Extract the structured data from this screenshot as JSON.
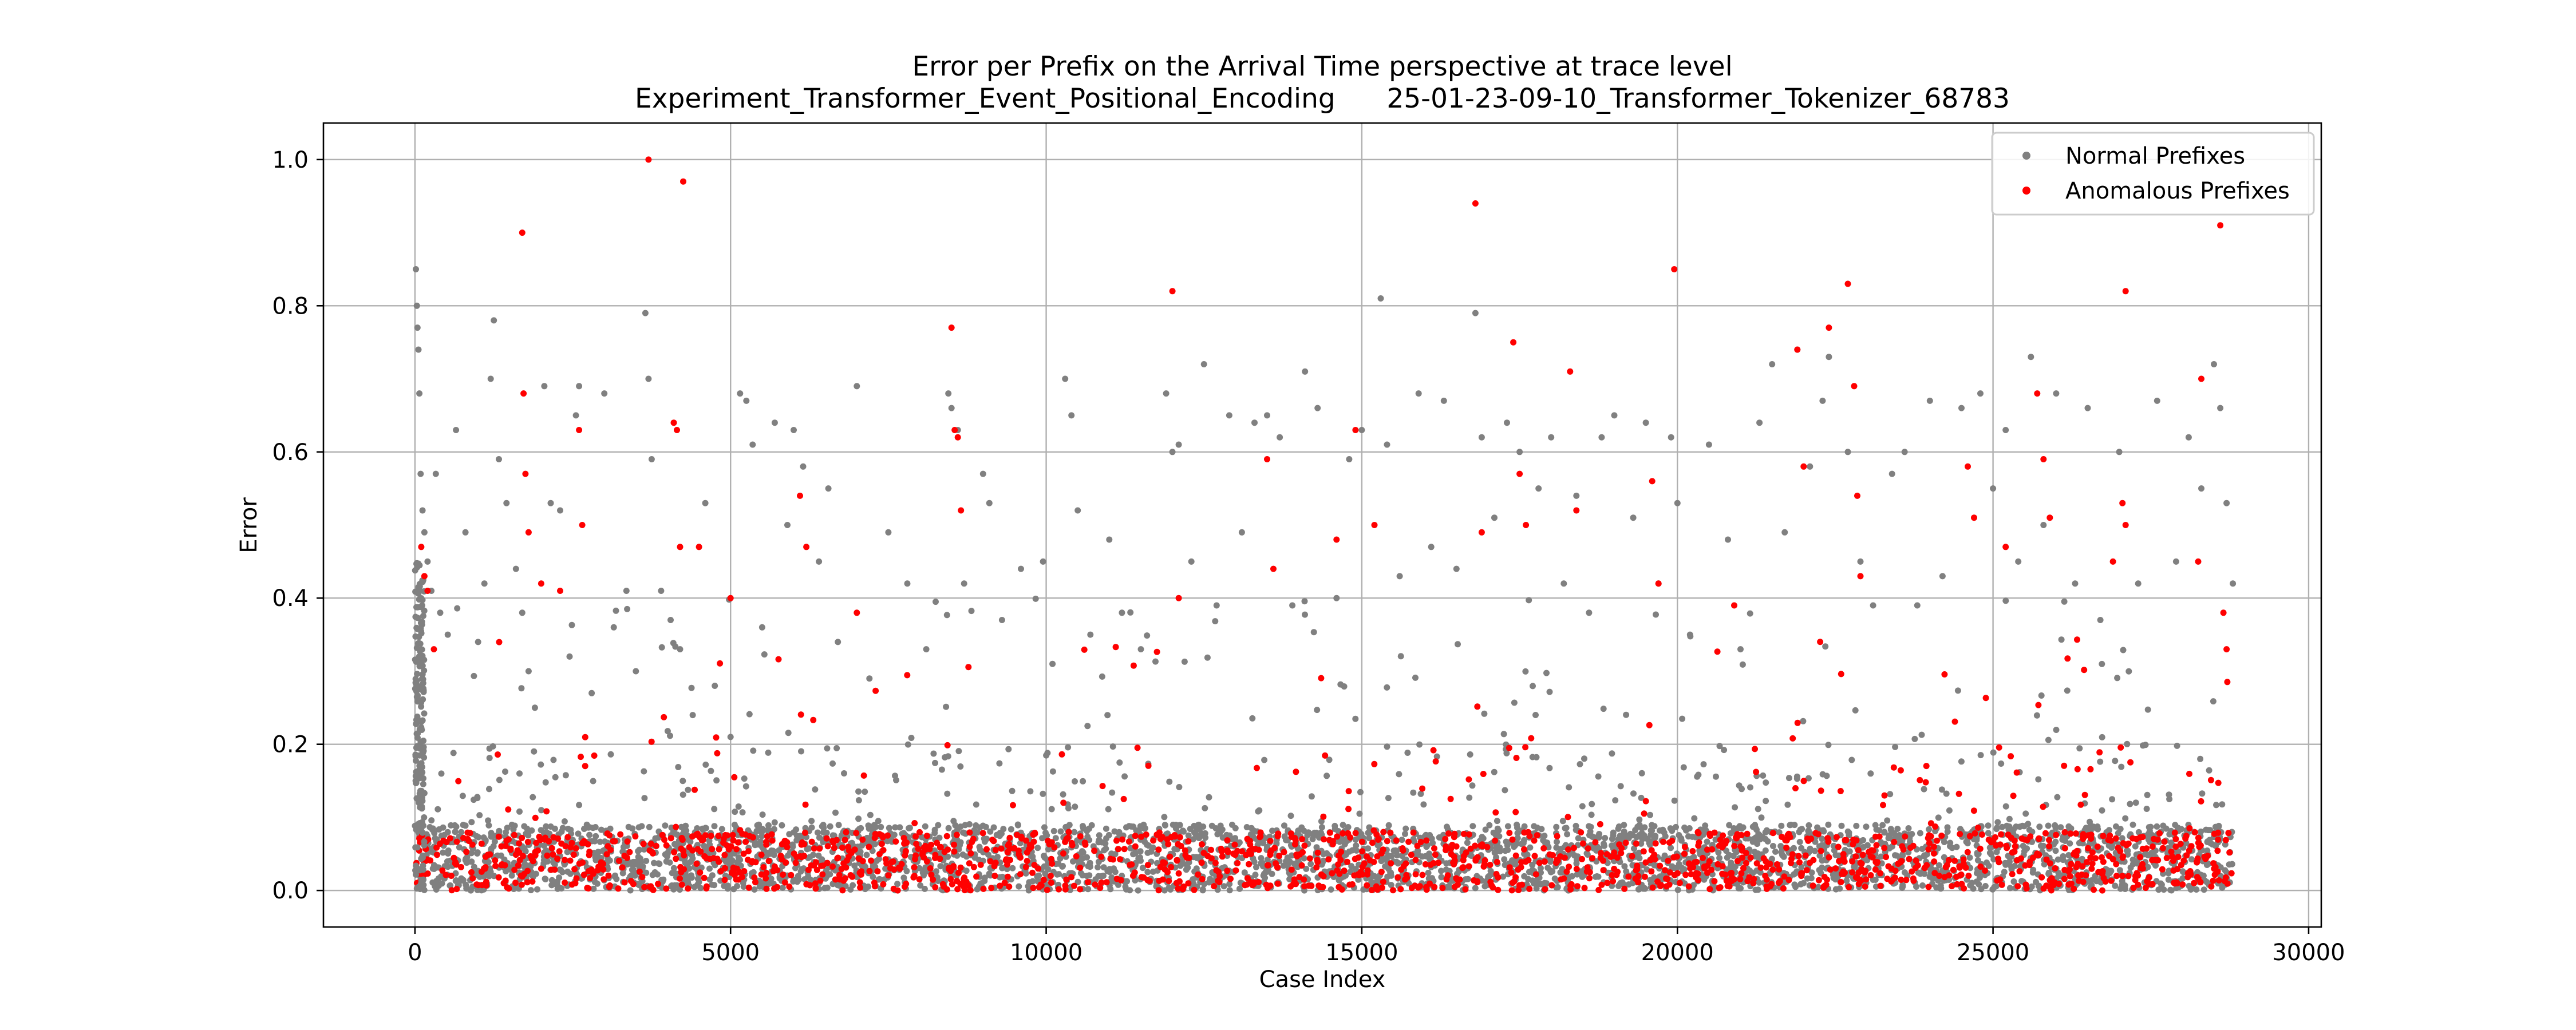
{
  "chart_data": {
    "type": "scatter",
    "title": "Error per Prefix on the Arrival Time perspective at trace level",
    "subtitle": "Experiment_Transformer_Event_Positional_Encoding      25-01-23-09-10_Transformer_Tokenizer_68783",
    "xlabel": "Case Index",
    "ylabel": "Error",
    "xlim": [
      -1450,
      30200
    ],
    "ylim": [
      -0.05,
      1.05
    ],
    "x_ticks": [
      0,
      5000,
      10000,
      15000,
      20000,
      25000,
      30000
    ],
    "y_ticks": [
      0.0,
      0.2,
      0.4,
      0.6,
      0.8,
      1.0
    ],
    "x_tick_labels": [
      "0",
      "5000",
      "10000",
      "15000",
      "20000",
      "25000",
      "30000"
    ],
    "y_tick_labels": [
      "0.0",
      "0.2",
      "0.4",
      "0.6",
      "0.8",
      "1.0"
    ],
    "grid": true,
    "legend_position": "top-right",
    "series": [
      {
        "name": "Normal Prefixes",
        "color": "#808080",
        "points": [
          [
            15,
            0.85
          ],
          [
            30,
            0.8
          ],
          [
            40,
            0.77
          ],
          [
            55,
            0.74
          ],
          [
            70,
            0.68
          ],
          [
            90,
            0.57
          ],
          [
            120,
            0.52
          ],
          [
            150,
            0.49
          ],
          [
            200,
            0.45
          ],
          [
            260,
            0.41
          ],
          [
            330,
            0.57
          ],
          [
            400,
            0.38
          ],
          [
            520,
            0.35
          ],
          [
            650,
            0.63
          ],
          [
            800,
            0.49
          ],
          [
            1000,
            0.34
          ],
          [
            1100,
            0.42
          ],
          [
            1200,
            0.7
          ],
          [
            1250,
            0.78
          ],
          [
            1330,
            0.59
          ],
          [
            1450,
            0.53
          ],
          [
            1600,
            0.44
          ],
          [
            1700,
            0.38
          ],
          [
            1800,
            0.3
          ],
          [
            1900,
            0.25
          ],
          [
            2050,
            0.69
          ],
          [
            2150,
            0.53
          ],
          [
            2300,
            0.52
          ],
          [
            2450,
            0.32
          ],
          [
            2550,
            0.65
          ],
          [
            2600,
            0.69
          ],
          [
            2800,
            0.27
          ],
          [
            3000,
            0.68
          ],
          [
            3150,
            0.36
          ],
          [
            3350,
            0.41
          ],
          [
            3500,
            0.3
          ],
          [
            3650,
            0.79
          ],
          [
            3700,
            0.7
          ],
          [
            3750,
            0.59
          ],
          [
            3900,
            0.41
          ],
          [
            4050,
            0.37
          ],
          [
            4200,
            0.33
          ],
          [
            4400,
            0.24
          ],
          [
            4600,
            0.53
          ],
          [
            4750,
            0.28
          ],
          [
            5000,
            0.21
          ],
          [
            5150,
            0.68
          ],
          [
            5250,
            0.67
          ],
          [
            5350,
            0.61
          ],
          [
            5500,
            0.36
          ],
          [
            5700,
            0.64
          ],
          [
            5900,
            0.5
          ],
          [
            6000,
            0.63
          ],
          [
            6150,
            0.58
          ],
          [
            6400,
            0.45
          ],
          [
            6550,
            0.55
          ],
          [
            6700,
            0.34
          ],
          [
            7000,
            0.69
          ],
          [
            7200,
            0.29
          ],
          [
            7500,
            0.49
          ],
          [
            7800,
            0.42
          ],
          [
            8100,
            0.33
          ],
          [
            8450,
            0.68
          ],
          [
            8500,
            0.66
          ],
          [
            8600,
            0.63
          ],
          [
            8700,
            0.42
          ],
          [
            9000,
            0.57
          ],
          [
            9100,
            0.53
          ],
          [
            9300,
            0.37
          ],
          [
            9600,
            0.44
          ],
          [
            9950,
            0.45
          ],
          [
            10100,
            0.31
          ],
          [
            10300,
            0.7
          ],
          [
            10400,
            0.65
          ],
          [
            10500,
            0.52
          ],
          [
            10700,
            0.35
          ],
          [
            11000,
            0.48
          ],
          [
            11200,
            0.38
          ],
          [
            11500,
            0.33
          ],
          [
            11900,
            0.68
          ],
          [
            12000,
            0.6
          ],
          [
            12100,
            0.61
          ],
          [
            12300,
            0.45
          ],
          [
            12500,
            0.72
          ],
          [
            12700,
            0.39
          ],
          [
            12900,
            0.65
          ],
          [
            13100,
            0.49
          ],
          [
            13300,
            0.64
          ],
          [
            13500,
            0.65
          ],
          [
            13700,
            0.62
          ],
          [
            13900,
            0.39
          ],
          [
            14100,
            0.71
          ],
          [
            14300,
            0.66
          ],
          [
            14600,
            0.4
          ],
          [
            14800,
            0.59
          ],
          [
            15000,
            0.63
          ],
          [
            15300,
            0.81
          ],
          [
            15400,
            0.61
          ],
          [
            15600,
            0.43
          ],
          [
            15900,
            0.68
          ],
          [
            16100,
            0.47
          ],
          [
            16300,
            0.67
          ],
          [
            16500,
            0.44
          ],
          [
            16800,
            0.79
          ],
          [
            16900,
            0.62
          ],
          [
            17100,
            0.51
          ],
          [
            17300,
            0.64
          ],
          [
            17500,
            0.6
          ],
          [
            17800,
            0.55
          ],
          [
            18000,
            0.62
          ],
          [
            18200,
            0.42
          ],
          [
            18400,
            0.54
          ],
          [
            18600,
            0.38
          ],
          [
            18800,
            0.62
          ],
          [
            19000,
            0.65
          ],
          [
            19300,
            0.51
          ],
          [
            19500,
            0.64
          ],
          [
            19700,
            0.42
          ],
          [
            19900,
            0.62
          ],
          [
            20000,
            0.53
          ],
          [
            20200,
            0.35
          ],
          [
            20500,
            0.61
          ],
          [
            20800,
            0.48
          ],
          [
            21000,
            0.33
          ],
          [
            21300,
            0.64
          ],
          [
            21500,
            0.72
          ],
          [
            21700,
            0.49
          ],
          [
            21900,
            0.74
          ],
          [
            22100,
            0.58
          ],
          [
            22300,
            0.67
          ],
          [
            22400,
            0.73
          ],
          [
            22700,
            0.6
          ],
          [
            22900,
            0.45
          ],
          [
            23100,
            0.39
          ],
          [
            23400,
            0.57
          ],
          [
            23600,
            0.6
          ],
          [
            23800,
            0.39
          ],
          [
            24000,
            0.67
          ],
          [
            24200,
            0.43
          ],
          [
            24500,
            0.66
          ],
          [
            24800,
            0.68
          ],
          [
            25000,
            0.55
          ],
          [
            25200,
            0.63
          ],
          [
            25400,
            0.45
          ],
          [
            25600,
            0.73
          ],
          [
            25800,
            0.5
          ],
          [
            26000,
            0.68
          ],
          [
            26300,
            0.42
          ],
          [
            26500,
            0.66
          ],
          [
            26700,
            0.37
          ],
          [
            27000,
            0.6
          ],
          [
            27300,
            0.42
          ],
          [
            27600,
            0.67
          ],
          [
            27900,
            0.45
          ],
          [
            28100,
            0.62
          ],
          [
            28300,
            0.55
          ],
          [
            28500,
            0.72
          ],
          [
            28600,
            0.66
          ],
          [
            28700,
            0.53
          ],
          [
            28800,
            0.42
          ]
        ]
      },
      {
        "name": "Anomalous Prefixes",
        "color": "#ff0000",
        "points": [
          [
            100,
            0.47
          ],
          [
            150,
            0.43
          ],
          [
            200,
            0.41
          ],
          [
            300,
            0.33
          ],
          [
            1700,
            0.9
          ],
          [
            1720,
            0.68
          ],
          [
            1750,
            0.57
          ],
          [
            1800,
            0.49
          ],
          [
            2000,
            0.42
          ],
          [
            2300,
            0.41
          ],
          [
            2600,
            0.63
          ],
          [
            2650,
            0.5
          ],
          [
            3700,
            1.0
          ],
          [
            4100,
            0.64
          ],
          [
            4150,
            0.63
          ],
          [
            4250,
            0.97
          ],
          [
            4200,
            0.47
          ],
          [
            4500,
            0.47
          ],
          [
            5000,
            0.4
          ],
          [
            6100,
            0.54
          ],
          [
            6200,
            0.47
          ],
          [
            7000,
            0.38
          ],
          [
            8500,
            0.77
          ],
          [
            8550,
            0.63
          ],
          [
            8600,
            0.62
          ],
          [
            8650,
            0.52
          ],
          [
            12000,
            0.82
          ],
          [
            12100,
            0.4
          ],
          [
            13500,
            0.59
          ],
          [
            13600,
            0.44
          ],
          [
            14600,
            0.48
          ],
          [
            14900,
            0.63
          ],
          [
            15200,
            0.5
          ],
          [
            16800,
            0.94
          ],
          [
            16900,
            0.49
          ],
          [
            17400,
            0.75
          ],
          [
            17500,
            0.57
          ],
          [
            17600,
            0.5
          ],
          [
            18300,
            0.71
          ],
          [
            18400,
            0.52
          ],
          [
            19600,
            0.56
          ],
          [
            19700,
            0.42
          ],
          [
            19950,
            0.85
          ],
          [
            20900,
            0.39
          ],
          [
            21900,
            0.74
          ],
          [
            22000,
            0.58
          ],
          [
            22400,
            0.77
          ],
          [
            22700,
            0.83
          ],
          [
            22800,
            0.69
          ],
          [
            22850,
            0.54
          ],
          [
            22900,
            0.43
          ],
          [
            24600,
            0.58
          ],
          [
            24700,
            0.51
          ],
          [
            25200,
            0.47
          ],
          [
            25700,
            0.68
          ],
          [
            25800,
            0.59
          ],
          [
            25900,
            0.51
          ],
          [
            26900,
            0.45
          ],
          [
            27100,
            0.82
          ],
          [
            27050,
            0.53
          ],
          [
            27100,
            0.5
          ],
          [
            28300,
            0.7
          ],
          [
            28250,
            0.45
          ],
          [
            28600,
            0.91
          ],
          [
            28650,
            0.38
          ],
          [
            28700,
            0.33
          ]
        ]
      }
    ]
  }
}
